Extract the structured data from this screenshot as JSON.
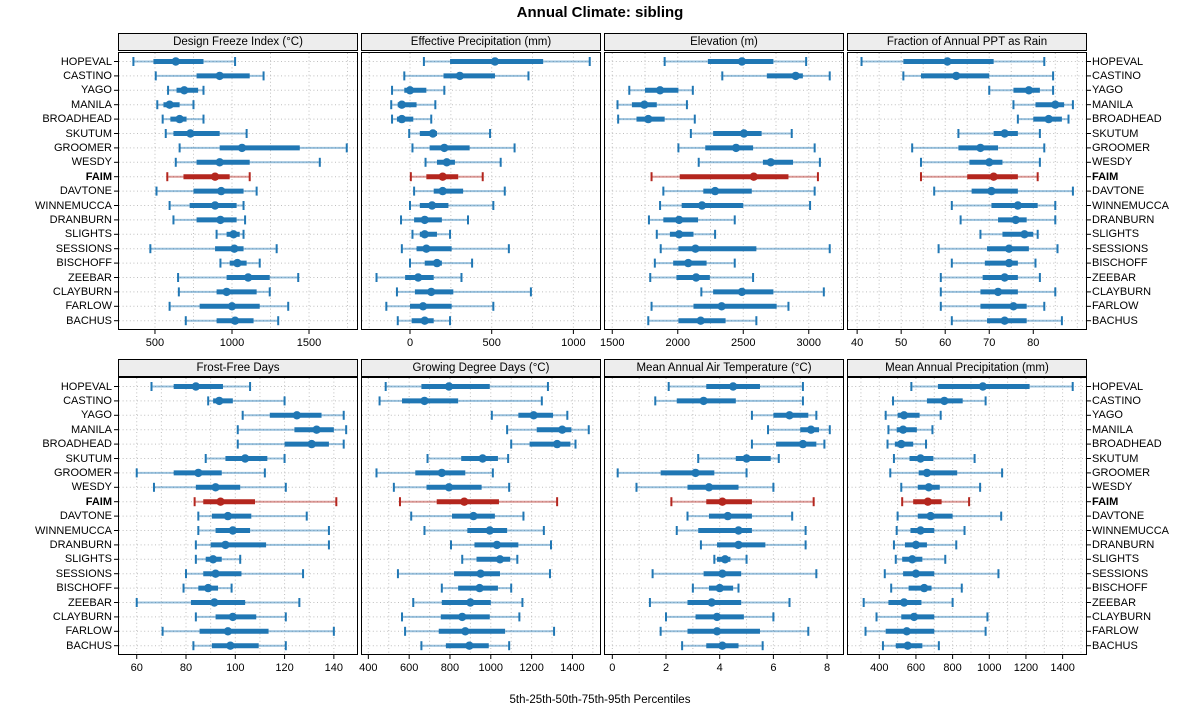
{
  "title": "Annual Climate: sibling",
  "footer": "5th-25th-50th-75th-95th Percentiles",
  "highlight_station": "FAIM",
  "percentile_keys": [
    "5th",
    "25th",
    "50th",
    "75th",
    "95th"
  ],
  "colors": {
    "series": "#2077b4",
    "highlight": "#b4261e",
    "grid": "#bfbfbf",
    "strip_bg": "#ededed",
    "border": "#000000"
  },
  "stations": [
    "HOPEVAL",
    "CASTINO",
    "YAGO",
    "MANILA",
    "BROADHEAD",
    "SKUTUM",
    "GROOMER",
    "WESDY",
    "FAIM",
    "DAVTONE",
    "WINNEMUCCA",
    "DRANBURN",
    "SLIGHTS",
    "SESSIONS",
    "BISCHOFF",
    "ZEEBAR",
    "CLAYBURN",
    "FARLOW",
    "BACHUS"
  ],
  "chart_data": [
    {
      "type": "box",
      "title": "Design Freeze Index (°C)",
      "xlim": [
        260,
        1818
      ],
      "ticks": [
        500,
        1000,
        1500
      ],
      "minor_step": 250,
      "values": [
        [
          360,
          490,
          635,
          815,
          1020
        ],
        [
          505,
          770,
          920,
          1115,
          1205
        ],
        [
          585,
          640,
          690,
          780,
          815
        ],
        [
          515,
          555,
          595,
          660,
          750
        ],
        [
          550,
          600,
          660,
          705,
          815
        ],
        [
          570,
          620,
          730,
          920,
          1095
        ],
        [
          660,
          920,
          1065,
          1440,
          1745
        ],
        [
          635,
          770,
          920,
          1115,
          1570
        ],
        [
          580,
          685,
          890,
          985,
          1115
        ],
        [
          510,
          750,
          930,
          1075,
          1160
        ],
        [
          595,
          725,
          890,
          1030,
          1075
        ],
        [
          620,
          770,
          925,
          1030,
          1085
        ],
        [
          900,
          965,
          1010,
          1050,
          1075
        ],
        [
          470,
          890,
          1015,
          1075,
          1290
        ],
        [
          925,
          985,
          1035,
          1095,
          1180
        ],
        [
          650,
          965,
          1105,
          1245,
          1430
        ],
        [
          655,
          900,
          965,
          1160,
          1245
        ],
        [
          595,
          790,
          1000,
          1180,
          1365
        ],
        [
          700,
          900,
          1020,
          1140,
          1300
        ]
      ]
    },
    {
      "type": "box",
      "title": "Effective Precipitation (mm)",
      "xlim": [
        -300,
        1169
      ],
      "ticks": [
        0,
        500,
        1000
      ],
      "minor_step": 250,
      "values": [
        [
          85,
          245,
          520,
          815,
          1100
        ],
        [
          -35,
          205,
          305,
          520,
          725
        ],
        [
          -110,
          -35,
          0,
          100,
          210
        ],
        [
          -115,
          -75,
          -50,
          40,
          155
        ],
        [
          -110,
          -80,
          -50,
          20,
          130
        ],
        [
          -5,
          60,
          140,
          165,
          490
        ],
        [
          15,
          120,
          210,
          365,
          640
        ],
        [
          95,
          165,
          225,
          275,
          555
        ],
        [
          5,
          100,
          200,
          295,
          445
        ],
        [
          25,
          145,
          200,
          325,
          580
        ],
        [
          0,
          60,
          135,
          235,
          510
        ],
        [
          -55,
          25,
          90,
          195,
          355
        ],
        [
          15,
          60,
          90,
          165,
          245
        ],
        [
          -50,
          40,
          100,
          255,
          605
        ],
        [
          0,
          90,
          165,
          195,
          380
        ],
        [
          -205,
          -30,
          50,
          145,
          315
        ],
        [
          -80,
          30,
          130,
          265,
          740
        ],
        [
          -145,
          0,
          80,
          255,
          510
        ],
        [
          -75,
          10,
          90,
          145,
          245
        ]
      ]
    },
    {
      "type": "box",
      "title": "Elevation (m)",
      "xlim": [
        1437,
        3269
      ],
      "ticks": [
        1500,
        2000,
        2500,
        3000
      ],
      "minor_step": 250,
      "values": [
        [
          1900,
          2230,
          2490,
          2730,
          2980
        ],
        [
          2340,
          2680,
          2900,
          2955,
          3160
        ],
        [
          1630,
          1750,
          1865,
          2005,
          2115
        ],
        [
          1540,
          1650,
          1745,
          1840,
          2070
        ],
        [
          1545,
          1685,
          1775,
          1900,
          2130
        ],
        [
          2100,
          2270,
          2505,
          2640,
          2870
        ],
        [
          2005,
          2210,
          2445,
          2575,
          3045
        ],
        [
          2160,
          2650,
          2710,
          2880,
          3085
        ],
        [
          1800,
          2015,
          2580,
          2845,
          3070
        ],
        [
          1890,
          2195,
          2285,
          2565,
          3045
        ],
        [
          1865,
          2030,
          2185,
          2500,
          3010
        ],
        [
          1780,
          1890,
          2010,
          2155,
          2435
        ],
        [
          1840,
          1940,
          2010,
          2120,
          2285
        ],
        [
          1870,
          2005,
          2135,
          2600,
          3160
        ],
        [
          1825,
          1965,
          2080,
          2220,
          2435
        ],
        [
          1790,
          1990,
          2140,
          2245,
          2575
        ],
        [
          2180,
          2270,
          2490,
          2730,
          3115
        ],
        [
          1800,
          2120,
          2335,
          2755,
          2845
        ],
        [
          1775,
          2005,
          2175,
          2365,
          2600
        ]
      ]
    },
    {
      "type": "box",
      "title": "Fraction of Annual PPT as Rain",
      "xlim": [
        37.7,
        92.2
      ],
      "ticks": [
        40,
        50,
        60,
        70,
        80
      ],
      "minor_step": 5,
      "values": [
        [
          41,
          50.5,
          60.5,
          71,
          82.5
        ],
        [
          50.5,
          54.5,
          62.5,
          70,
          84.5
        ],
        [
          70,
          75.5,
          79,
          81.5,
          84.5
        ],
        [
          75.5,
          80.5,
          85,
          87,
          89
        ],
        [
          76.5,
          80,
          83.5,
          86.5,
          88
        ],
        [
          63,
          71,
          73.5,
          76.5,
          81.5
        ],
        [
          52.5,
          63,
          68,
          72,
          82.5
        ],
        [
          54.5,
          65.5,
          70,
          73,
          81.5
        ],
        [
          54.5,
          65,
          71,
          76.5,
          81
        ],
        [
          57.5,
          66,
          70.5,
          76.5,
          89
        ],
        [
          61.5,
          70.5,
          76.5,
          81,
          85
        ],
        [
          63.5,
          72,
          76,
          78.5,
          85
        ],
        [
          68,
          73,
          78,
          80,
          81
        ],
        [
          58.5,
          69.5,
          74.5,
          79,
          85.5
        ],
        [
          61.5,
          69,
          74.5,
          76.5,
          80.5
        ],
        [
          59,
          68.5,
          73.5,
          76.5,
          81.5
        ],
        [
          59,
          68,
          72,
          76.5,
          85
        ],
        [
          59,
          68,
          75.5,
          78.5,
          82.5
        ],
        [
          61.5,
          69.5,
          73.5,
          78.5,
          86.5
        ]
      ]
    },
    {
      "type": "box",
      "title": "Frost-Free Days",
      "xlim": [
        52.4,
        149.8
      ],
      "ticks": [
        60,
        80,
        100,
        120,
        140
      ],
      "minor_step": 10,
      "values": [
        [
          66,
          75,
          84,
          95,
          106
        ],
        [
          89,
          91,
          93.5,
          99,
          120
        ],
        [
          103,
          114,
          125,
          135,
          144
        ],
        [
          101,
          124,
          133,
          140,
          145
        ],
        [
          101,
          120,
          131,
          138,
          144
        ],
        [
          88,
          96,
          104,
          113,
          120
        ],
        [
          60,
          75,
          85,
          94.5,
          112
        ],
        [
          67,
          84,
          92,
          102,
          120.5
        ],
        [
          83.5,
          87,
          94,
          108,
          141
        ],
        [
          85,
          90.5,
          97,
          106.5,
          129
        ],
        [
          85,
          92,
          99,
          106,
          138
        ],
        [
          84,
          90,
          96,
          112.5,
          138
        ],
        [
          84,
          88,
          91,
          94.5,
          102
        ],
        [
          80,
          87,
          92,
          102.5,
          127.5
        ],
        [
          79,
          85,
          89,
          93,
          98.5
        ],
        [
          60,
          82,
          91.5,
          104,
          126
        ],
        [
          84,
          92,
          99,
          108.5,
          120.5
        ],
        [
          70.5,
          85.5,
          97,
          113.5,
          140
        ],
        [
          83,
          90.5,
          98,
          109.5,
          120.5
        ]
      ]
    },
    {
      "type": "box",
      "title": "Growing Degree Days (°C)",
      "xlim": [
        364,
        1540
      ],
      "ticks": [
        400,
        600,
        800,
        1000,
        1200,
        1400
      ],
      "minor_step": 100,
      "values": [
        [
          485,
          660,
          795,
          995,
          1280
        ],
        [
          455,
          565,
          675,
          840,
          1250
        ],
        [
          1005,
          1135,
          1210,
          1305,
          1375
        ],
        [
          1080,
          1225,
          1350,
          1395,
          1480
        ],
        [
          1100,
          1190,
          1325,
          1390,
          1415
        ],
        [
          690,
          855,
          960,
          1035,
          1085
        ],
        [
          440,
          630,
          760,
          875,
          1010
        ],
        [
          525,
          685,
          795,
          955,
          1090
        ],
        [
          555,
          735,
          870,
          1040,
          1325
        ],
        [
          610,
          810,
          915,
          1020,
          1160
        ],
        [
          675,
          885,
          995,
          1080,
          1260
        ],
        [
          805,
          920,
          1030,
          1135,
          1295
        ],
        [
          860,
          930,
          1045,
          1095,
          1130
        ],
        [
          545,
          820,
          950,
          1045,
          1290
        ],
        [
          760,
          840,
          945,
          1035,
          1100
        ],
        [
          620,
          760,
          900,
          1000,
          1155
        ],
        [
          565,
          755,
          860,
          995,
          1140
        ],
        [
          580,
          745,
          875,
          1070,
          1310
        ],
        [
          660,
          780,
          895,
          990,
          1090
        ]
      ]
    },
    {
      "type": "box",
      "title": "Mean Annual Air Temperature (°C)",
      "xlim": [
        -0.31,
        8.63
      ],
      "ticks": [
        0,
        2,
        4,
        6,
        8
      ],
      "minor_step": 1,
      "values": [
        [
          2.1,
          3.5,
          4.5,
          5.5,
          7.1
        ],
        [
          1.6,
          2.4,
          3.4,
          4.6,
          7.1
        ],
        [
          5.2,
          6.0,
          6.6,
          7.3,
          7.6
        ],
        [
          5.8,
          7.0,
          7.4,
          7.7,
          8.1
        ],
        [
          5.2,
          6.1,
          7.1,
          7.6,
          7.9
        ],
        [
          3.2,
          4.6,
          5.0,
          5.9,
          6.2
        ],
        [
          0.2,
          1.8,
          3.1,
          3.8,
          5.0
        ],
        [
          0.9,
          2.8,
          3.6,
          4.7,
          6.0
        ],
        [
          2.2,
          3.5,
          4.1,
          5.2,
          7.5
        ],
        [
          2.8,
          3.6,
          4.3,
          5.2,
          6.7
        ],
        [
          2.4,
          3.2,
          4.7,
          5.2,
          7.2
        ],
        [
          3.3,
          3.9,
          4.7,
          5.7,
          7.2
        ],
        [
          3.8,
          3.9,
          4.2,
          4.4,
          5.0
        ],
        [
          1.5,
          3.4,
          4.1,
          4.8,
          7.6
        ],
        [
          3.0,
          3.6,
          4.0,
          4.5,
          4.7
        ],
        [
          1.4,
          2.8,
          3.7,
          4.8,
          6.6
        ],
        [
          2.0,
          3.1,
          3.9,
          4.9,
          6.0
        ],
        [
          1.8,
          2.8,
          3.9,
          5.5,
          7.3
        ],
        [
          2.6,
          3.5,
          4.1,
          4.7,
          5.6
        ]
      ]
    },
    {
      "type": "box",
      "title": "Mean Annual Precipitation (mm)",
      "xlim": [
        224,
        1533
      ],
      "ticks": [
        400,
        600,
        800,
        1000,
        1200,
        1400
      ],
      "minor_step": 100,
      "values": [
        [
          575,
          720,
          965,
          1220,
          1455
        ],
        [
          475,
          660,
          755,
          855,
          980
        ],
        [
          435,
          500,
          535,
          620,
          735
        ],
        [
          450,
          495,
          530,
          605,
          690
        ],
        [
          445,
          485,
          520,
          585,
          655
        ],
        [
          480,
          565,
          625,
          695,
          920
        ],
        [
          460,
          615,
          660,
          825,
          1070
        ],
        [
          520,
          610,
          670,
          730,
          950
        ],
        [
          525,
          585,
          665,
          740,
          890
        ],
        [
          500,
          610,
          680,
          800,
          1065
        ],
        [
          495,
          570,
          625,
          700,
          865
        ],
        [
          480,
          540,
          600,
          660,
          820
        ],
        [
          490,
          525,
          580,
          635,
          760
        ],
        [
          430,
          530,
          600,
          700,
          1050
        ],
        [
          465,
          560,
          645,
          685,
          850
        ],
        [
          315,
          450,
          535,
          630,
          800
        ],
        [
          385,
          520,
          590,
          700,
          990
        ],
        [
          325,
          435,
          550,
          700,
          980
        ],
        [
          420,
          490,
          555,
          635,
          725
        ]
      ]
    }
  ]
}
